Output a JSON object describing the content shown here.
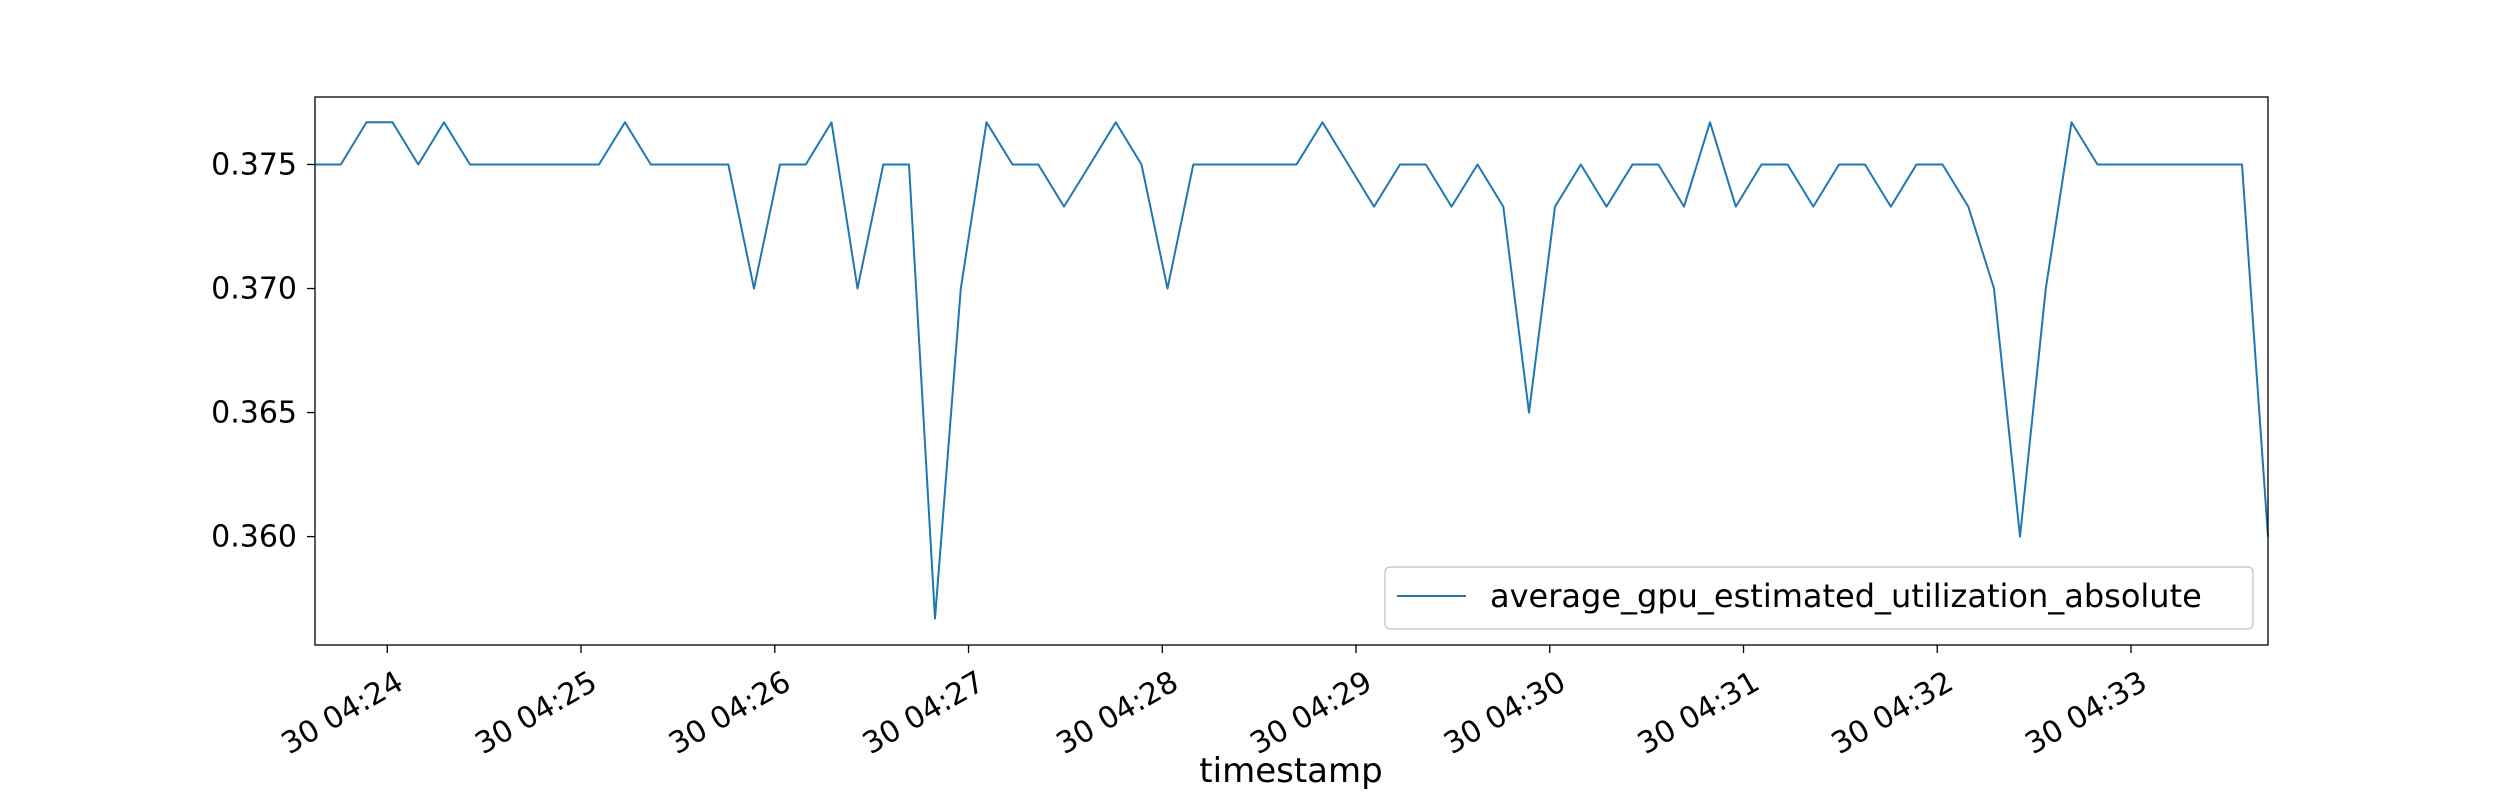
{
  "chart_data": {
    "type": "line",
    "title": "",
    "xlabel": "timestamp",
    "ylabel": "",
    "x_tick_labels": [
      "30 04:24",
      "30 04:25",
      "30 04:26",
      "30 04:27",
      "30 04:28",
      "30 04:29",
      "30 04:30",
      "30 04:31",
      "30 04:32",
      "30 04:33"
    ],
    "x_tick_minutes": [
      24,
      25,
      26,
      27,
      28,
      29,
      30,
      31,
      32,
      33
    ],
    "y_ticks": [
      0.36,
      0.365,
      0.37,
      0.375
    ],
    "y_tick_labels": [
      "0.360",
      "0.365",
      "0.370",
      "0.375"
    ],
    "xlim_minutes": [
      23.627,
      33.707
    ],
    "ylim": [
      0.35563,
      0.37772
    ],
    "grid": false,
    "legend_position": "lower-right",
    "series": [
      {
        "name": "average_gpu_estimated_utilization_absolute",
        "color": "#1f77b4",
        "x_minutes": [
          23.627,
          23.76,
          23.893,
          24.027,
          24.16,
          24.293,
          24.427,
          24.56,
          24.693,
          24.827,
          24.96,
          25.093,
          25.227,
          25.36,
          25.493,
          25.627,
          25.76,
          25.893,
          26.027,
          26.16,
          26.293,
          26.427,
          26.56,
          26.693,
          26.827,
          26.96,
          27.093,
          27.227,
          27.36,
          27.493,
          27.627,
          27.76,
          27.893,
          28.027,
          28.16,
          28.293,
          28.427,
          28.56,
          28.693,
          28.827,
          28.96,
          29.093,
          29.227,
          29.36,
          29.493,
          29.627,
          29.76,
          29.893,
          30.027,
          30.16,
          30.293,
          30.427,
          30.56,
          30.693,
          30.827,
          30.96,
          31.093,
          31.227,
          31.36,
          31.493,
          31.627,
          31.76,
          31.893,
          32.027,
          32.16,
          32.293,
          32.427,
          32.56,
          32.693,
          32.827,
          32.96,
          33.093,
          33.227,
          33.36,
          33.493,
          33.573,
          33.707
        ],
        "values": [
          0.375,
          0.375,
          0.3767,
          0.3767,
          0.375,
          0.3767,
          0.375,
          0.375,
          0.375,
          0.375,
          0.375,
          0.375,
          0.3767,
          0.375,
          0.375,
          0.375,
          0.375,
          0.37,
          0.375,
          0.375,
          0.3767,
          0.37,
          0.375,
          0.375,
          0.3567,
          0.37,
          0.3767,
          0.375,
          0.375,
          0.3733,
          0.375,
          0.3767,
          0.375,
          0.37,
          0.375,
          0.375,
          0.375,
          0.375,
          0.375,
          0.3767,
          0.375,
          0.3733,
          0.375,
          0.375,
          0.3733,
          0.375,
          0.3733,
          0.365,
          0.3733,
          0.375,
          0.3733,
          0.375,
          0.375,
          0.3733,
          0.3767,
          0.3733,
          0.375,
          0.375,
          0.3733,
          0.375,
          0.375,
          0.3733,
          0.375,
          0.375,
          0.3733,
          0.37,
          0.36,
          0.37,
          0.3767,
          0.375,
          0.375,
          0.375,
          0.375,
          0.375,
          0.375,
          0.375,
          0.36
        ]
      }
    ]
  }
}
